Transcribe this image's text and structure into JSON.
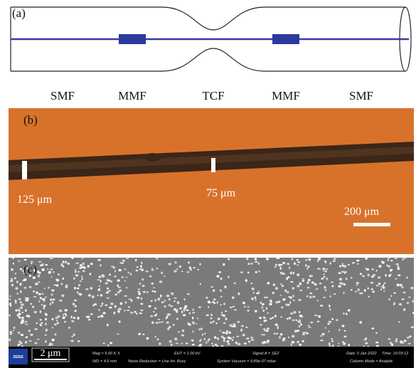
{
  "panel_a": {
    "label": "(a)",
    "fiber_labels": [
      "SMF",
      "MMF",
      "TCF",
      "MMF",
      "SMF"
    ]
  },
  "panel_b": {
    "label": "(b)",
    "width_left": "125 μm",
    "width_middle": "75 μm",
    "scale_bar": "200 μm"
  },
  "panel_c": {
    "label": "(c)",
    "scale_bar": "2 μm",
    "logo": "ZEISS",
    "info_top": [
      "Mag =  5.00 K X",
      "EHT =  1.00 kV",
      "Signal A = SE2",
      "Date: 5 Jan 2022",
      "Time: 16:03:12"
    ],
    "info_bottom": [
      "WD =  4.6 mm",
      "Noise Reduction = Line Int. Busy",
      "System Vacuum = 9.89e-07 mbar",
      "Column Mode = Analytic"
    ]
  }
}
